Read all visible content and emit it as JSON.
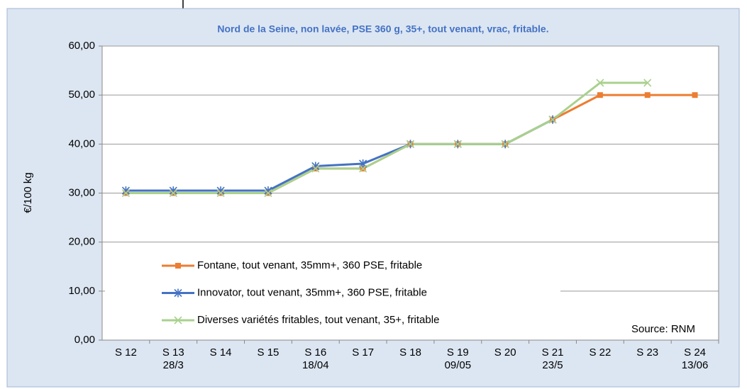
{
  "chart_data": {
    "type": "line",
    "title": "Nord de la Seine, non lavée, PSE 360 g, 35+, tout venant, vrac, fritable.",
    "y_label": "€/100 kg",
    "annotation": "Source: RNM",
    "categories": [
      "S 12",
      "S 13\n28/3",
      "S 14",
      "S 15",
      "S 16\n18/04",
      "S 17",
      "S 18",
      "S 19\n09/05",
      "S 20",
      "S 21\n23/5",
      "S 22",
      "S 23",
      "S 24\n13/06"
    ],
    "series": [
      {
        "name": "Fontane, tout venant, 35mm+, 360 PSE, fritable",
        "color": "#ed7d31",
        "marker": "square",
        "values": [
          30,
          30,
          30,
          30,
          35,
          35,
          40,
          40,
          40,
          45,
          50,
          50,
          50
        ]
      },
      {
        "name": "Innovator, tout venant, 35mm+, 360 PSE,  fritable",
        "color": "#4472c4",
        "marker": "star",
        "values": [
          30.5,
          30.5,
          30.5,
          30.5,
          35.5,
          36,
          40,
          40,
          40,
          45,
          null,
          null,
          null
        ]
      },
      {
        "name": "Diverses variétés fritables, tout venant, 35+, fritable",
        "color": "#a9d18e",
        "marker": "x",
        "values": [
          30,
          30,
          30,
          30,
          35,
          35,
          40,
          40,
          40,
          45,
          52.5,
          52.5,
          null
        ]
      }
    ],
    "ylim": [
      0,
      60
    ],
    "yticks": [
      {
        "value": 0,
        "label": "0,00"
      },
      {
        "value": 10,
        "label": "10,00"
      },
      {
        "value": 20,
        "label": "20,00"
      },
      {
        "value": 30,
        "label": "30,00"
      },
      {
        "value": 40,
        "label": "40,00"
      },
      {
        "value": 50,
        "label": "50,00"
      },
      {
        "value": 60,
        "label": "60,00"
      }
    ],
    "grid": true,
    "legend": "bottom-left"
  }
}
